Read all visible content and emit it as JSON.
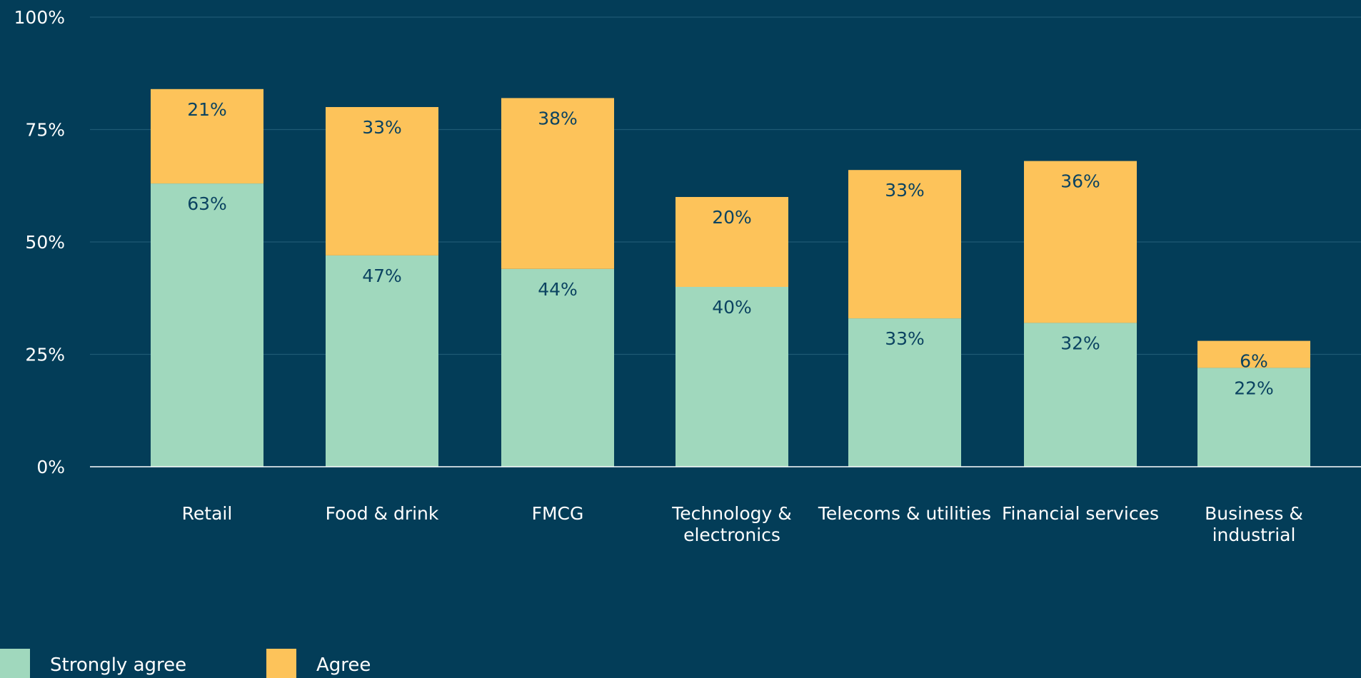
{
  "chart_data": {
    "type": "bar",
    "stacked": true,
    "categories": [
      [
        "Retail"
      ],
      [
        "Food & drink"
      ],
      [
        "FMCG"
      ],
      [
        "Technology &",
        "electronics"
      ],
      [
        "Telecoms & utilities"
      ],
      [
        "Financial services"
      ],
      [
        "Business &",
        "industrial"
      ]
    ],
    "series": [
      {
        "name": "Strongly agree",
        "color": "#a0d8bd",
        "values": [
          63,
          47,
          44,
          40,
          33,
          32,
          22
        ],
        "labels": [
          "63%",
          "47%",
          "44%",
          "40%",
          "33%",
          "32%",
          "22%"
        ]
      },
      {
        "name": "Agree",
        "color": "#fdc35a",
        "values": [
          21,
          33,
          38,
          20,
          33,
          36,
          6
        ],
        "labels": [
          "21%",
          "33%",
          "38%",
          "20%",
          "33%",
          "36%",
          "6%"
        ]
      }
    ],
    "ylim": [
      0,
      100
    ],
    "yticks": [
      0,
      25,
      50,
      75,
      100
    ],
    "ytick_labels": [
      "0%",
      "25%",
      "50%",
      "75%",
      "100%"
    ],
    "grid": true,
    "legend_position": "bottom-left",
    "background": "#033d58",
    "gridline_color": "#1f5a73",
    "axis_color": "#ffffff"
  }
}
